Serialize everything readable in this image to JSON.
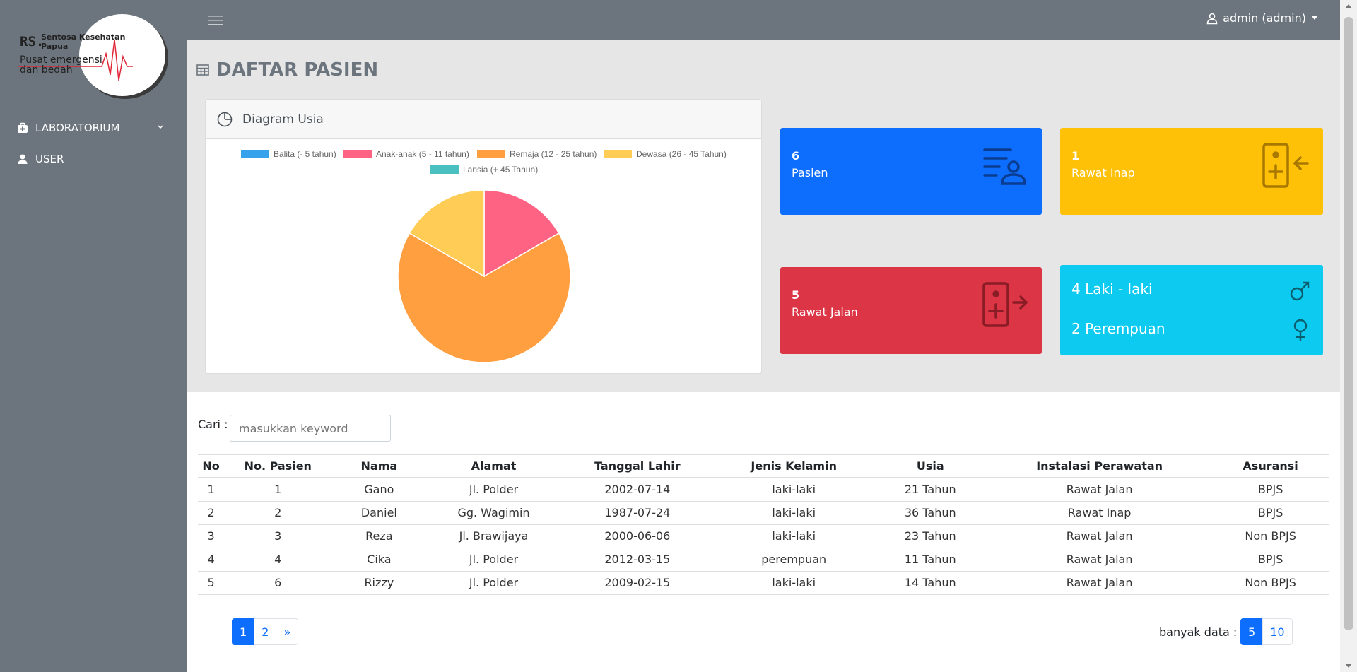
{
  "logo": {
    "rs": "RS.",
    "name": "Sentosa Kesehatan Papua",
    "tagline": "Pusat emergensi dan bedah"
  },
  "sidebar": {
    "items": [
      {
        "label": "LABORATORIUM",
        "icon": "medkit-icon"
      },
      {
        "label": "USER",
        "icon": "user-icon"
      }
    ]
  },
  "header": {
    "user_label": "admin (admin)"
  },
  "page": {
    "title": "DAFTAR PASIEN"
  },
  "chart_card": {
    "title": "Diagram Usia"
  },
  "chart_data": {
    "type": "pie",
    "categories": [
      "Balita (- 5 tahun)",
      "Anak-anak (5 - 11 tahun)",
      "Remaja (12 - 25 tahun)",
      "Dewasa (26 - 45 Tahun)",
      "Lansia (+ 45 Tahun)"
    ],
    "values": [
      0,
      1,
      4,
      1,
      0
    ],
    "colors": [
      "#36a2eb",
      "#ff6384",
      "#ff9f40",
      "#ffcd56",
      "#4bc0c0"
    ],
    "legend": "top"
  },
  "stats": {
    "pasien": {
      "count": "6",
      "label": "Pasien"
    },
    "rawat_inap": {
      "count": "1",
      "label": "Rawat Inap"
    },
    "rawat_jalan": {
      "count": "5",
      "label": "Rawat Jalan"
    },
    "gender": {
      "male": "4 Laki - laki",
      "female": "2 Perempuan"
    }
  },
  "search": {
    "label": "Cari :",
    "placeholder": "masukkan keyword"
  },
  "table": {
    "headers": [
      "No",
      "No. Pasien",
      "Nama",
      "Alamat",
      "Tanggal Lahir",
      "Jenis Kelamin",
      "Usia",
      "Instalasi Perawatan",
      "Asuransi"
    ],
    "rows": [
      [
        "1",
        "1",
        "Gano",
        "Jl. Polder",
        "2002-07-14",
        "laki-laki",
        "21 Tahun",
        "Rawat Jalan",
        "BPJS"
      ],
      [
        "2",
        "2",
        "Daniel",
        "Gg. Wagimin",
        "1987-07-24",
        "laki-laki",
        "36 Tahun",
        "Rawat Inap",
        "BPJS"
      ],
      [
        "3",
        "3",
        "Reza",
        "Jl. Brawijaya",
        "2000-06-06",
        "laki-laki",
        "23 Tahun",
        "Rawat Jalan",
        "Non BPJS"
      ],
      [
        "4",
        "4",
        "Cika",
        "Jl. Polder",
        "2012-03-15",
        "perempuan",
        "11 Tahun",
        "Rawat Jalan",
        "BPJS"
      ],
      [
        "5",
        "6",
        "Rizzy",
        "Jl. Polder",
        "2009-02-15",
        "laki-laki",
        "14 Tahun",
        "Rawat Jalan",
        "Non BPJS"
      ]
    ]
  },
  "pagination": {
    "pages": [
      "1",
      "2",
      "»"
    ],
    "active": "1"
  },
  "per_page": {
    "label": "banyak data :",
    "options": [
      "5",
      "10"
    ],
    "active": "5"
  },
  "colors": {
    "sidebar": "#6c757d",
    "primary": "#0d6efd",
    "warning": "#ffc107",
    "danger": "#dc3545",
    "info": "#0dcaf0"
  }
}
